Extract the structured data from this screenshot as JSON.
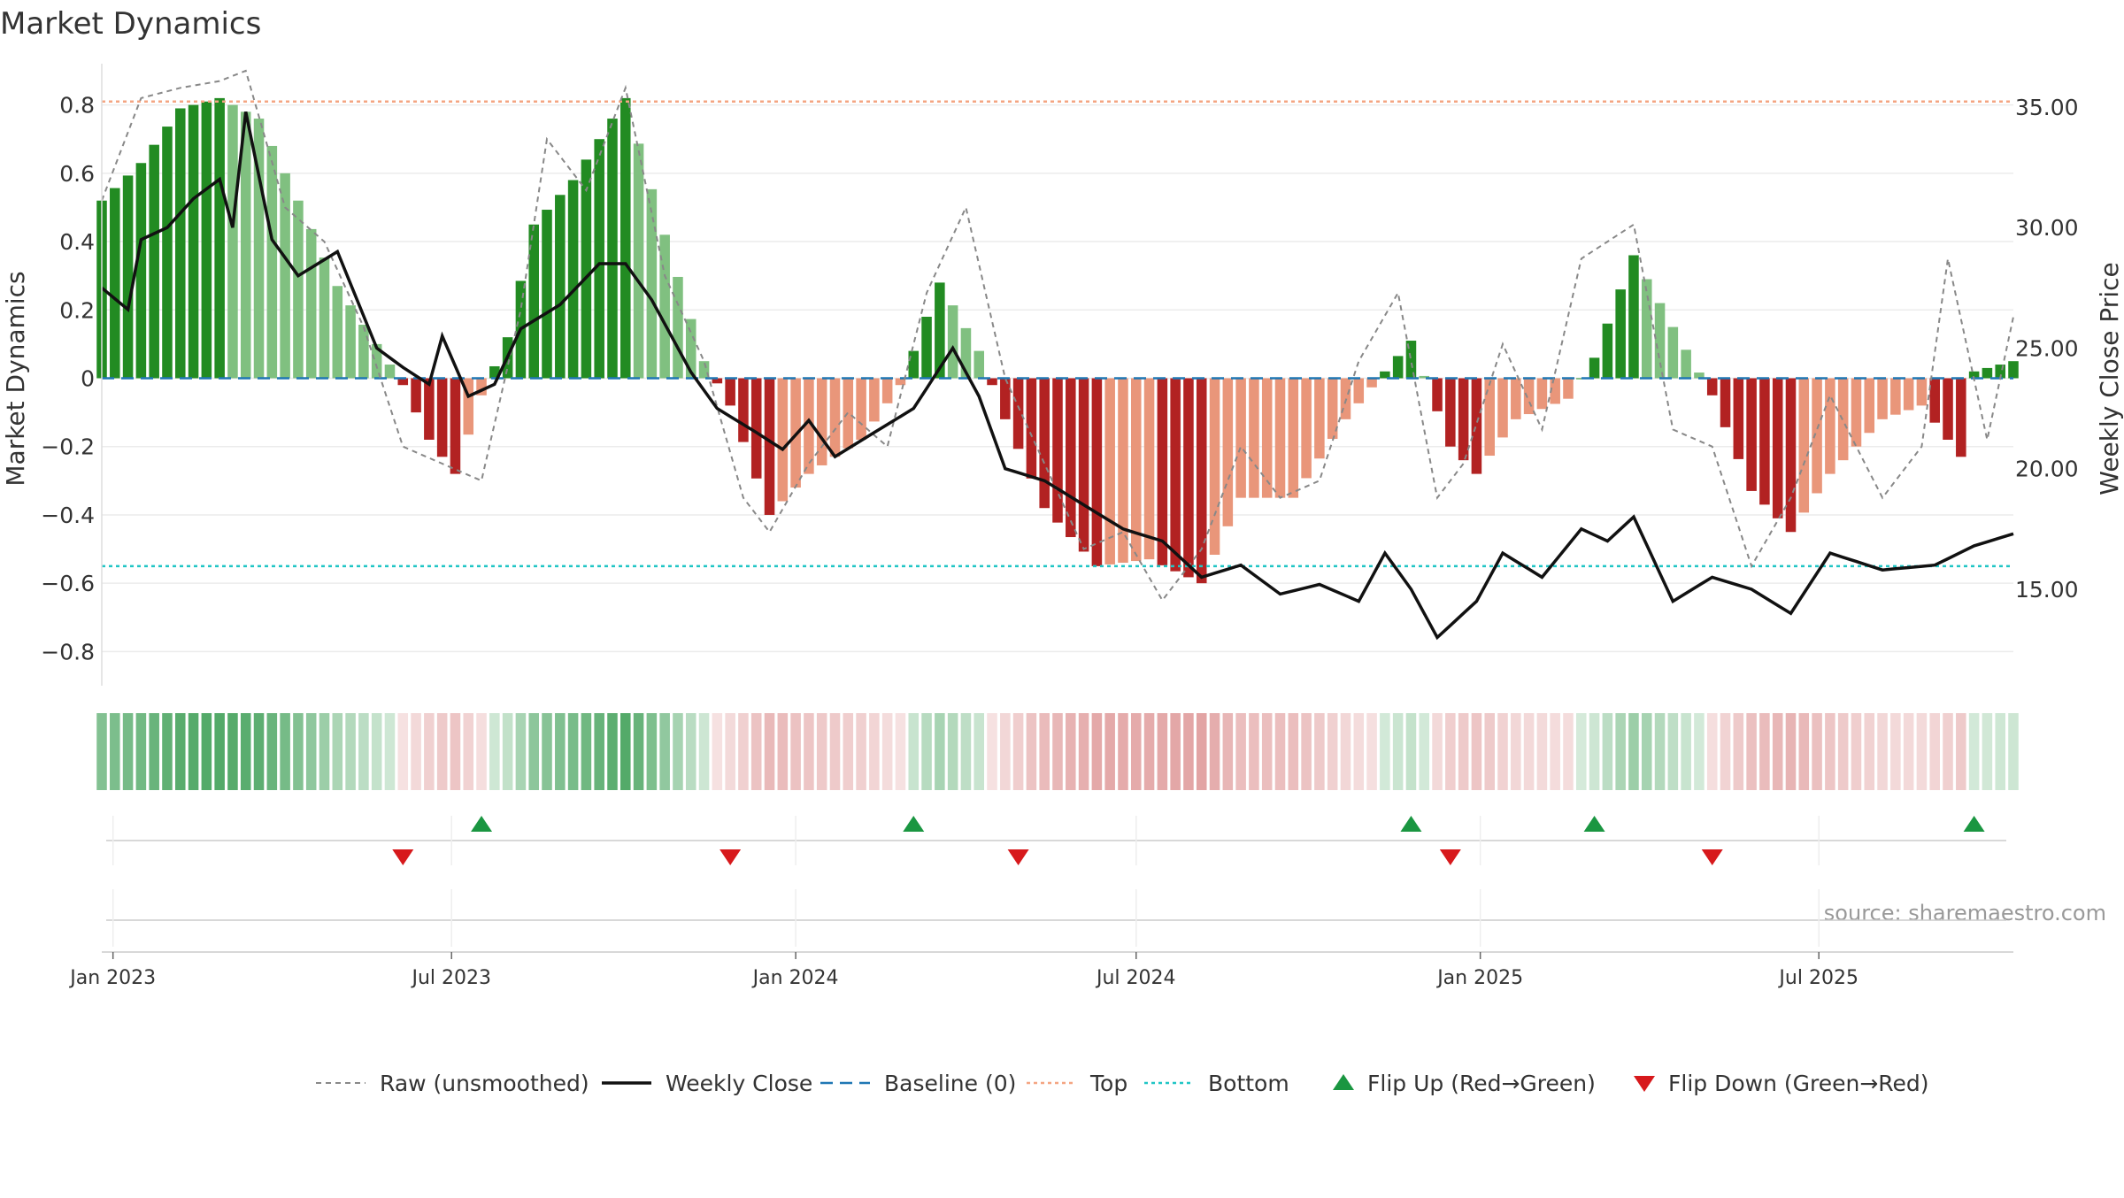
{
  "chart_data": {
    "type": "bar",
    "title": "Market Dynamics",
    "ylabel_left": "Market Dynamics",
    "ylabel_right": "Weekly Close Price",
    "source": "source: sharemaestro.com",
    "ylim_left": [
      -0.9,
      0.9
    ],
    "ylim_right": [
      11.0,
      36.5
    ],
    "yticks_left": [
      -0.8,
      -0.6,
      -0.4,
      -0.2,
      0,
      0.2,
      0.4,
      0.6,
      0.8
    ],
    "yticks_left_labels": [
      "−0.8",
      "−0.6",
      "−0.4",
      "−0.2",
      "0",
      "0.2",
      "0.4",
      "0.6",
      "0.8"
    ],
    "yticks_right": [
      15,
      20,
      25,
      30,
      35
    ],
    "yticks_right_labels": [
      "15.00",
      "20.00",
      "25.00",
      "30.00",
      "35.00"
    ],
    "x_start": "2022-12-26",
    "x_end": "2025-10-13",
    "xticks": [
      {
        "date": "2023-01-01",
        "label": "Jan 2023"
      },
      {
        "date": "2023-07-01",
        "label": "Jul 2023"
      },
      {
        "date": "2024-01-01",
        "label": "Jan 2024"
      },
      {
        "date": "2024-07-01",
        "label": "Jul 2024"
      },
      {
        "date": "2025-01-01",
        "label": "Jan 2025"
      },
      {
        "date": "2025-07-01",
        "label": "Jul 2025"
      }
    ],
    "top_level": 0.81,
    "bottom_level": -0.55,
    "baseline": 0,
    "keypoints_dynamics": [
      [
        "2022-12-26",
        0.52
      ],
      [
        "2023-01-16",
        0.63
      ],
      [
        "2023-02-06",
        0.79
      ],
      [
        "2023-02-27",
        0.82
      ],
      [
        "2023-03-20",
        0.76
      ],
      [
        "2023-04-10",
        0.52
      ],
      [
        "2023-05-01",
        0.27
      ],
      [
        "2023-05-22",
        0.1
      ],
      [
        "2023-06-05",
        -0.02
      ],
      [
        "2023-06-19",
        -0.18
      ],
      [
        "2023-07-03",
        -0.28
      ],
      [
        "2023-07-17",
        -0.05
      ],
      [
        "2023-07-31",
        0.12
      ],
      [
        "2023-08-14",
        0.45
      ],
      [
        "2023-09-04",
        0.58
      ],
      [
        "2023-10-02",
        0.82
      ],
      [
        "2023-10-23",
        0.42
      ],
      [
        "2023-11-13",
        0.05
      ],
      [
        "2023-11-27",
        -0.08
      ],
      [
        "2023-12-18",
        -0.4
      ],
      [
        "2024-01-08",
        -0.28
      ],
      [
        "2024-02-05",
        -0.18
      ],
      [
        "2024-02-26",
        -0.02
      ],
      [
        "2024-03-18",
        0.28
      ],
      [
        "2024-04-08",
        0.08
      ],
      [
        "2024-04-22",
        -0.12
      ],
      [
        "2024-05-13",
        -0.38
      ],
      [
        "2024-06-10",
        -0.55
      ],
      [
        "2024-07-08",
        -0.53
      ],
      [
        "2024-08-05",
        -0.6
      ],
      [
        "2024-08-26",
        -0.35
      ],
      [
        "2024-09-23",
        -0.35
      ],
      [
        "2024-10-21",
        -0.12
      ],
      [
        "2024-11-11",
        0.02
      ],
      [
        "2024-11-25",
        0.11
      ],
      [
        "2024-12-16",
        -0.2
      ],
      [
        "2024-12-30",
        -0.28
      ],
      [
        "2025-01-20",
        -0.12
      ],
      [
        "2025-02-17",
        -0.06
      ],
      [
        "2025-03-03",
        0.06
      ],
      [
        "2025-03-24",
        0.36
      ],
      [
        "2025-04-14",
        0.15
      ],
      [
        "2025-05-05",
        -0.05
      ],
      [
        "2025-05-26",
        -0.33
      ],
      [
        "2025-06-16",
        -0.45
      ],
      [
        "2025-07-07",
        -0.28
      ],
      [
        "2025-08-04",
        -0.12
      ],
      [
        "2025-08-25",
        -0.08
      ],
      [
        "2025-09-15",
        -0.23
      ],
      [
        "2025-09-22",
        0.02
      ],
      [
        "2025-10-13",
        0.05
      ]
    ],
    "keypoints_close": [
      [
        "2022-12-26",
        27.5
      ],
      [
        "2023-01-09",
        26.6
      ],
      [
        "2023-01-16",
        29.5
      ],
      [
        "2023-01-30",
        30.0
      ],
      [
        "2023-02-13",
        31.2
      ],
      [
        "2023-02-27",
        32.0
      ],
      [
        "2023-03-06",
        30.0
      ],
      [
        "2023-03-13",
        34.8
      ],
      [
        "2023-03-27",
        29.5
      ],
      [
        "2023-04-10",
        28.0
      ],
      [
        "2023-05-01",
        29.0
      ],
      [
        "2023-05-22",
        25.0
      ],
      [
        "2023-06-05",
        24.2
      ],
      [
        "2023-06-19",
        23.5
      ],
      [
        "2023-06-26",
        25.5
      ],
      [
        "2023-07-10",
        23.0
      ],
      [
        "2023-07-24",
        23.5
      ],
      [
        "2023-08-07",
        25.8
      ],
      [
        "2023-08-28",
        26.8
      ],
      [
        "2023-09-18",
        28.5
      ],
      [
        "2023-10-02",
        28.5
      ],
      [
        "2023-10-16",
        27.0
      ],
      [
        "2023-11-06",
        24.0
      ],
      [
        "2023-11-20",
        22.5
      ],
      [
        "2023-12-11",
        21.5
      ],
      [
        "2023-12-25",
        20.8
      ],
      [
        "2024-01-08",
        22.0
      ],
      [
        "2024-01-22",
        20.5
      ],
      [
        "2024-02-12",
        21.5
      ],
      [
        "2024-03-04",
        22.5
      ],
      [
        "2024-03-25",
        25.0
      ],
      [
        "2024-04-08",
        23.0
      ],
      [
        "2024-04-22",
        20.0
      ],
      [
        "2024-05-13",
        19.5
      ],
      [
        "2024-06-03",
        18.5
      ],
      [
        "2024-06-24",
        17.5
      ],
      [
        "2024-07-15",
        17.0
      ],
      [
        "2024-08-05",
        15.5
      ],
      [
        "2024-08-26",
        16.0
      ],
      [
        "2024-09-16",
        14.8
      ],
      [
        "2024-10-07",
        15.2
      ],
      [
        "2024-10-28",
        14.5
      ],
      [
        "2024-11-11",
        16.5
      ],
      [
        "2024-11-25",
        15.0
      ],
      [
        "2024-12-09",
        13.0
      ],
      [
        "2024-12-30",
        14.5
      ],
      [
        "2025-01-13",
        16.5
      ],
      [
        "2025-02-03",
        15.5
      ],
      [
        "2025-02-24",
        17.5
      ],
      [
        "2025-03-10",
        17.0
      ],
      [
        "2025-03-24",
        18.0
      ],
      [
        "2025-04-14",
        14.5
      ],
      [
        "2025-05-05",
        15.5
      ],
      [
        "2025-05-26",
        15.0
      ],
      [
        "2025-06-16",
        14.0
      ],
      [
        "2025-07-07",
        16.5
      ],
      [
        "2025-08-04",
        15.8
      ],
      [
        "2025-09-01",
        16.0
      ],
      [
        "2025-09-22",
        16.8
      ],
      [
        "2025-10-13",
        17.3
      ]
    ],
    "keypoints_raw": [
      [
        "2022-12-26",
        0.52
      ],
      [
        "2023-01-16",
        0.82
      ],
      [
        "2023-02-06",
        0.85
      ],
      [
        "2023-02-27",
        0.87
      ],
      [
        "2023-03-13",
        0.9
      ],
      [
        "2023-04-03",
        0.5
      ],
      [
        "2023-04-24",
        0.4
      ],
      [
        "2023-05-15",
        0.15
      ],
      [
        "2023-06-05",
        -0.2
      ],
      [
        "2023-06-26",
        -0.25
      ],
      [
        "2023-07-17",
        -0.3
      ],
      [
        "2023-08-07",
        0.2
      ],
      [
        "2023-08-21",
        0.7
      ],
      [
        "2023-09-11",
        0.55
      ],
      [
        "2023-10-02",
        0.85
      ],
      [
        "2023-10-23",
        0.3
      ],
      [
        "2023-11-13",
        0.05
      ],
      [
        "2023-12-04",
        -0.35
      ],
      [
        "2023-12-18",
        -0.45
      ],
      [
        "2024-01-08",
        -0.25
      ],
      [
        "2024-01-29",
        -0.1
      ],
      [
        "2024-02-19",
        -0.2
      ],
      [
        "2024-03-11",
        0.25
      ],
      [
        "2024-04-01",
        0.5
      ],
      [
        "2024-04-22",
        0.0
      ],
      [
        "2024-05-13",
        -0.25
      ],
      [
        "2024-06-03",
        -0.5
      ],
      [
        "2024-06-24",
        -0.45
      ],
      [
        "2024-07-15",
        -0.65
      ],
      [
        "2024-08-05",
        -0.5
      ],
      [
        "2024-08-26",
        -0.2
      ],
      [
        "2024-09-16",
        -0.35
      ],
      [
        "2024-10-07",
        -0.3
      ],
      [
        "2024-10-28",
        0.05
      ],
      [
        "2024-11-18",
        0.25
      ],
      [
        "2024-12-09",
        -0.35
      ],
      [
        "2024-12-23",
        -0.25
      ],
      [
        "2025-01-13",
        0.1
      ],
      [
        "2025-02-03",
        -0.15
      ],
      [
        "2025-02-24",
        0.35
      ],
      [
        "2025-03-24",
        0.45
      ],
      [
        "2025-04-14",
        -0.15
      ],
      [
        "2025-05-05",
        -0.2
      ],
      [
        "2025-05-26",
        -0.55
      ],
      [
        "2025-06-16",
        -0.35
      ],
      [
        "2025-07-07",
        -0.05
      ],
      [
        "2025-08-04",
        -0.35
      ],
      [
        "2025-08-25",
        -0.2
      ],
      [
        "2025-09-08",
        0.35
      ],
      [
        "2025-09-29",
        -0.18
      ],
      [
        "2025-10-13",
        0.18
      ]
    ],
    "flip_up": [
      "2023-07-17",
      "2024-03-04",
      "2024-11-25",
      "2025-03-03",
      "2025-09-22"
    ],
    "flip_down": [
      "2023-06-05",
      "2023-11-27",
      "2024-04-29",
      "2024-12-16",
      "2025-05-05"
    ],
    "legend": [
      {
        "label": "Raw (unsmoothed)",
        "kind": "dashed-line",
        "color": "#888888"
      },
      {
        "label": "Weekly Close",
        "kind": "line",
        "color": "#111111"
      },
      {
        "label": "Baseline (0)",
        "kind": "dashed-line",
        "color": "#1f77b4"
      },
      {
        "label": "Top",
        "kind": "dotted-line",
        "color": "#f4a582"
      },
      {
        "label": "Bottom",
        "kind": "dotted-line",
        "color": "#20c5c5"
      },
      {
        "label": "Flip Up (Red→Green)",
        "kind": "triangle-up",
        "color": "#1a9641"
      },
      {
        "label": "Flip Down (Green→Red)",
        "kind": "triangle-down",
        "color": "#d7191c"
      }
    ],
    "colors": {
      "green_strong": "#228b22",
      "green_weak": "#80c080",
      "red_strong": "#b22222",
      "red_weak": "#e9967a"
    }
  }
}
